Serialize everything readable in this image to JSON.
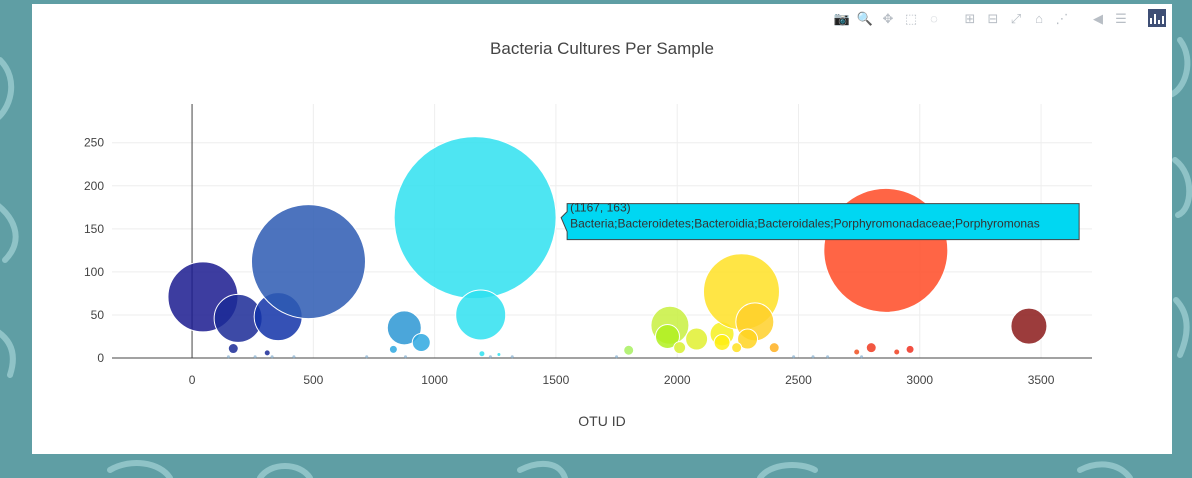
{
  "toolbar": {
    "buttons": [
      {
        "icon": "camera-icon",
        "name": "download-plot-button",
        "glyph": "📷"
      },
      {
        "icon": "zoom-icon",
        "name": "zoom-button",
        "glyph": "🔍",
        "active": true
      },
      {
        "icon": "pan-icon",
        "name": "pan-button",
        "glyph": "✥"
      },
      {
        "icon": "box-select-icon",
        "name": "box-select-button",
        "glyph": "⬚"
      },
      {
        "icon": "lasso-icon",
        "name": "lasso-select-button",
        "glyph": "◌"
      },
      {
        "icon": "zoom-in-icon",
        "name": "zoom-in-button",
        "glyph": "⊞"
      },
      {
        "icon": "zoom-out-icon",
        "name": "zoom-out-button",
        "glyph": "⊟"
      },
      {
        "icon": "autoscale-icon",
        "name": "autoscale-button",
        "glyph": "⤢"
      },
      {
        "icon": "home-icon",
        "name": "reset-axes-button",
        "glyph": "⌂"
      },
      {
        "icon": "spike-lines-icon",
        "name": "toggle-spike-lines-button",
        "glyph": "⋰"
      },
      {
        "icon": "hover-closest-icon",
        "name": "hover-closest-button",
        "glyph": "◀"
      },
      {
        "icon": "hover-compare-icon",
        "name": "hover-compare-button",
        "glyph": "☰"
      }
    ]
  },
  "chart_data": {
    "type": "scatter",
    "title": "Bacteria Cultures Per Sample",
    "xlabel": "OTU ID",
    "ylabel": "",
    "xlim": [
      -330,
      3710
    ],
    "ylim": [
      0,
      295
    ],
    "x_ticks": [
      0,
      500,
      1000,
      1500,
      2000,
      2500,
      3000,
      3500
    ],
    "y_ticks": [
      0,
      50,
      100,
      150,
      200,
      250
    ],
    "grid": true,
    "colors": {
      "low": "#0d1e8a",
      "cyan": "#2fe0f0",
      "yellow": "#ffe930",
      "red": "#ff4a24",
      "dark_red": "#8b1a1a",
      "tooltip_bg": "#00d7f2"
    },
    "points": [
      {
        "x": 45,
        "y": 71,
        "r": 35,
        "c": "#1b1b8f"
      },
      {
        "x": 190,
        "y": 46,
        "r": 24,
        "c": "#1b2a96"
      },
      {
        "x": 355,
        "y": 48,
        "r": 24,
        "c": "#1233a8"
      },
      {
        "x": 480,
        "y": 112,
        "r": 57,
        "c": "#2d5ab3"
      },
      {
        "x": 170,
        "y": 11,
        "r": 5,
        "c": "#1b2a96"
      },
      {
        "x": 310,
        "y": 6,
        "r": 3,
        "c": "#1b2a96"
      },
      {
        "x": 875,
        "y": 35,
        "r": 17,
        "c": "#2b97d4"
      },
      {
        "x": 945,
        "y": 18,
        "r": 9,
        "c": "#2ea8e0"
      },
      {
        "x": 830,
        "y": 10,
        "r": 4,
        "c": "#2ea8e0"
      },
      {
        "x": 1167,
        "y": 163,
        "r": 81,
        "c": "#2fe0f0"
      },
      {
        "x": 1190,
        "y": 50,
        "r": 25,
        "c": "#2fe0f0"
      },
      {
        "x": 1195,
        "y": 5,
        "r": 3,
        "c": "#2fe0f0"
      },
      {
        "x": 1265,
        "y": 4,
        "r": 2,
        "c": "#2fe0f0"
      },
      {
        "x": 1800,
        "y": 9,
        "r": 5,
        "c": "#a8f060"
      },
      {
        "x": 1970,
        "y": 38,
        "r": 19,
        "c": "#c8f040"
      },
      {
        "x": 1960,
        "y": 25,
        "r": 12,
        "c": "#b0f020"
      },
      {
        "x": 2080,
        "y": 22,
        "r": 11,
        "c": "#e0f030"
      },
      {
        "x": 2010,
        "y": 12,
        "r": 6,
        "c": "#d8f030"
      },
      {
        "x": 2185,
        "y": 28,
        "r": 12,
        "c": "#f6f020"
      },
      {
        "x": 2185,
        "y": 18,
        "r": 8,
        "c": "#ffee10"
      },
      {
        "x": 2265,
        "y": 77,
        "r": 38,
        "c": "#ffe025"
      },
      {
        "x": 2320,
        "y": 42,
        "r": 19,
        "c": "#ffd02a"
      },
      {
        "x": 2290,
        "y": 22,
        "r": 10,
        "c": "#ffd420"
      },
      {
        "x": 2245,
        "y": 12,
        "r": 5,
        "c": "#ffe020"
      },
      {
        "x": 2400,
        "y": 12,
        "r": 5,
        "c": "#ffb020"
      },
      {
        "x": 2860,
        "y": 125,
        "r": 62,
        "c": "#ff4a24"
      },
      {
        "x": 2800,
        "y": 12,
        "r": 5,
        "c": "#f03a20"
      },
      {
        "x": 2960,
        "y": 10,
        "r": 4,
        "c": "#f03020"
      },
      {
        "x": 2740,
        "y": 7,
        "r": 3,
        "c": "#f05020"
      },
      {
        "x": 2905,
        "y": 7,
        "r": 3,
        "c": "#f04020"
      },
      {
        "x": 3450,
        "y": 37,
        "r": 18,
        "c": "#8b1a1a"
      }
    ],
    "hover": {
      "x": 1167,
      "y": 163,
      "line1": "(1167, 163)",
      "line2": "Bacteria;Bacteroidetes;Bacteroidia;Bacteroidales;Porphyromonadaceae;Porphyromonas"
    }
  }
}
